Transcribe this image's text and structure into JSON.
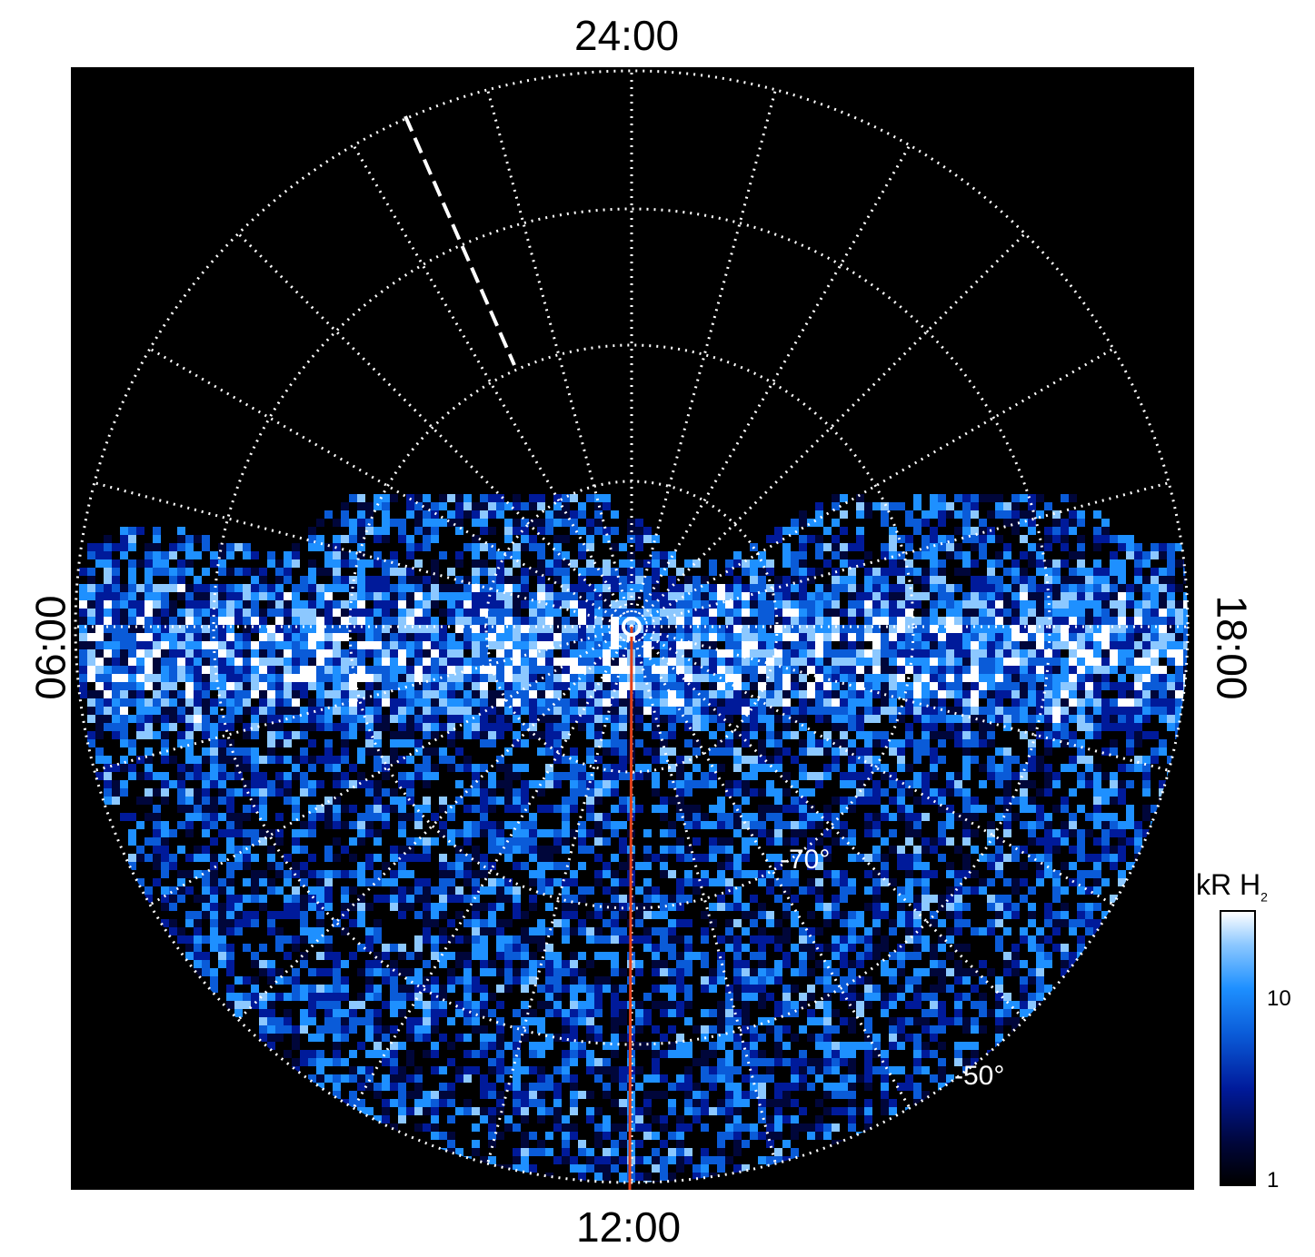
{
  "local_time_labels": {
    "top": "24:00",
    "bottom": "12:00",
    "left": "06:00",
    "right": "18:00"
  },
  "latitude_labels": {
    "inner": "-70°",
    "outer": "-50°"
  },
  "colorbar": {
    "title": "kR H",
    "title_subscript": "2",
    "ticks": [
      "10",
      "1"
    ],
    "scale": "log",
    "colors": [
      "#000000",
      "#00063a",
      "#001a9a",
      "#0a5bd8",
      "#1e90ff",
      "#8cc8ff",
      "#ffffff"
    ]
  },
  "colors": {
    "background": "#000000",
    "grid": "#ffffff",
    "meridian_line": "#e0401a"
  }
}
